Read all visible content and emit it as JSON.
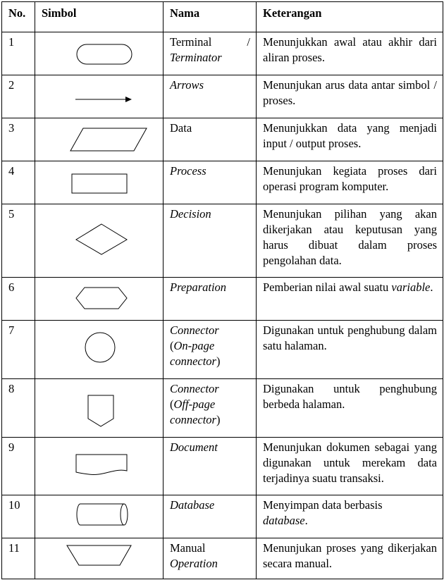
{
  "headers": {
    "no": "No.",
    "simbol": "Simbol",
    "nama": "Nama",
    "keterangan": "Keterangan"
  },
  "rows": [
    {
      "no": "1",
      "symbol_icon": "terminator-symbol-icon",
      "nama_a": "Terminal",
      "nama_sep": "/",
      "nama_b": "Terminator",
      "ket": "Menunjukkan awal atau akhir dari aliran proses."
    },
    {
      "no": "2",
      "symbol_icon": "arrow-symbol-icon",
      "nama": "Arrows",
      "ket": "Menunjukan arus data antar simbol / proses."
    },
    {
      "no": "3",
      "symbol_icon": "data-parallelogram-icon",
      "nama": "Data",
      "ket": "Menunjukkan data yang menjadi input / output proses."
    },
    {
      "no": "4",
      "symbol_icon": "process-rectangle-icon",
      "nama": "Process",
      "ket": "Menunjukan kegiata proses dari operasi program komputer."
    },
    {
      "no": "5",
      "symbol_icon": "decision-diamond-icon",
      "nama": "Decision",
      "ket": "Menunjukan pilihan yang akan dikerjakan atau keputusan yang harus dibuat dalam proses pengolahan data."
    },
    {
      "no": "6",
      "symbol_icon": "preparation-hexagon-icon",
      "nama": "Preparation",
      "ket_a": "Pemberian nilai awal suatu",
      "ket_b": "variable",
      "ket_c": "."
    },
    {
      "no": "7",
      "symbol_icon": "on-page-connector-circle-icon",
      "nama_a": "Connector",
      "nama_b": "(",
      "nama_c": "On-page",
      "nama_d": "connector",
      "nama_e": ")",
      "ket": "Digunakan untuk penghubung dalam satu halaman."
    },
    {
      "no": "8",
      "symbol_icon": "off-page-connector-pentagon-icon",
      "nama_a": "Connector",
      "nama_b": "(",
      "nama_c": "Off-page",
      "nama_d": "connector",
      "nama_e": ")",
      "ket": "Digunakan untuk penghubung berbeda halaman."
    },
    {
      "no": "9",
      "symbol_icon": "document-symbol-icon",
      "nama": "Document",
      "ket": "Menunjukan dokumen sebagai yang digunakan untuk merekam data terjadinya suatu transaksi."
    },
    {
      "no": "10",
      "symbol_icon": "database-cylinder-icon",
      "nama": "Database",
      "ket_a": "Menyimpan data berbasis",
      "ket_b": "database",
      "ket_c": "."
    },
    {
      "no": "11",
      "symbol_icon": "manual-operation-trapezoid-icon",
      "nama_a": "Manual",
      "nama_b": "Operation",
      "ket": "Menunjukan proses yang dikerjakan secara manual."
    }
  ]
}
